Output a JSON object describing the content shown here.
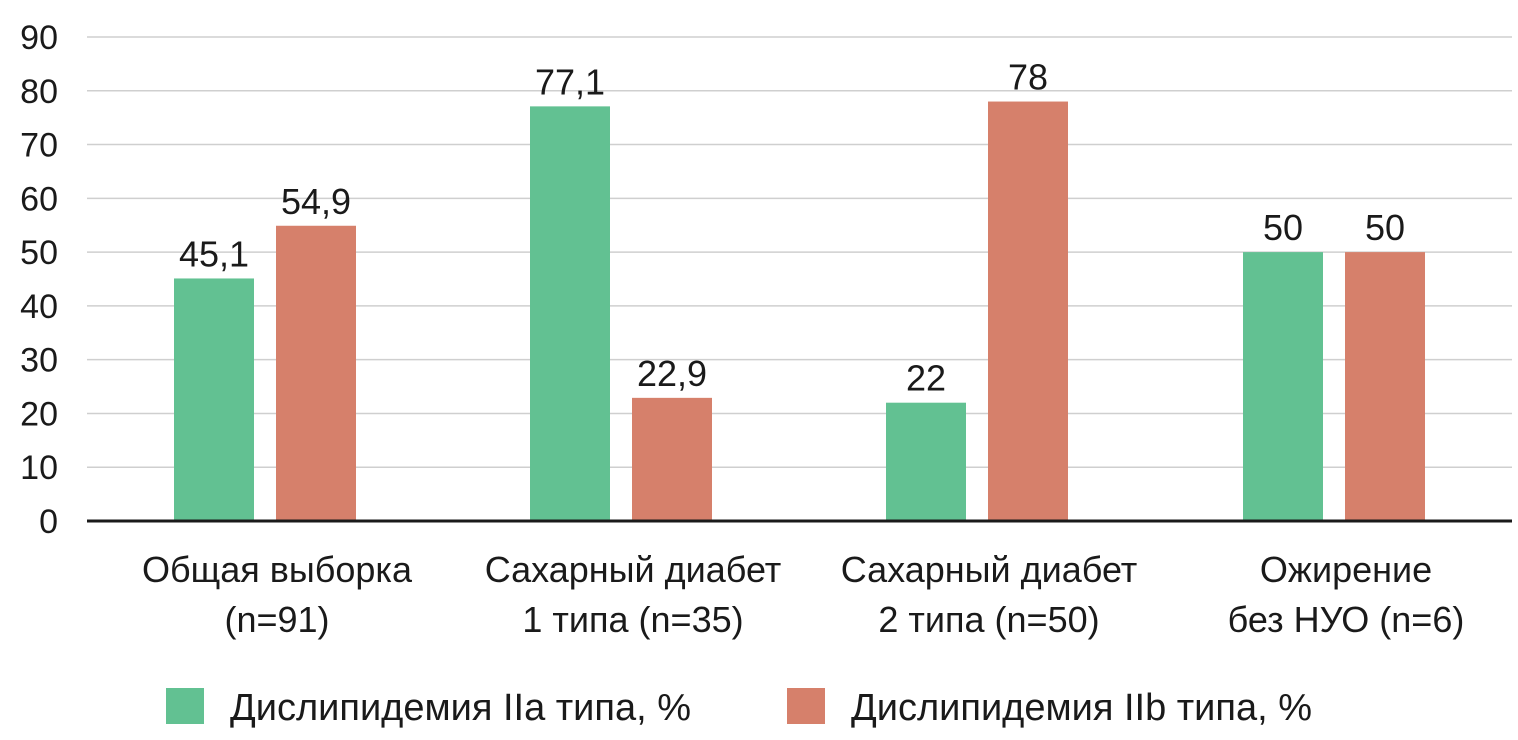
{
  "chart_data": {
    "type": "bar",
    "title": "",
    "xlabel": "",
    "ylabel": "",
    "ylim": [
      0,
      90
    ],
    "yticks": [
      0,
      10,
      20,
      30,
      40,
      50,
      60,
      70,
      80,
      90
    ],
    "grid": true,
    "legend_position": "bottom",
    "categories": [
      [
        "Общая выборка",
        "(n=91)"
      ],
      [
        "Сахарный диабет",
        "1 типа (n=35)"
      ],
      [
        "Сахарный диабет",
        "2 типа (n=50)"
      ],
      [
        "Ожирение",
        "без НУО (n=6)"
      ]
    ],
    "series": [
      {
        "name": "Дислипидемия IIa типа, %",
        "color": "#62c192",
        "values": [
          45.1,
          77.1,
          22,
          50
        ],
        "labels": [
          "45,1",
          "77,1",
          "22",
          "50"
        ]
      },
      {
        "name": "Дислипидемия IIb типа, %",
        "color": "#d6806b",
        "values": [
          54.9,
          22.9,
          78,
          50
        ],
        "labels": [
          "54,9",
          "22,9",
          "78",
          "50"
        ]
      }
    ]
  }
}
